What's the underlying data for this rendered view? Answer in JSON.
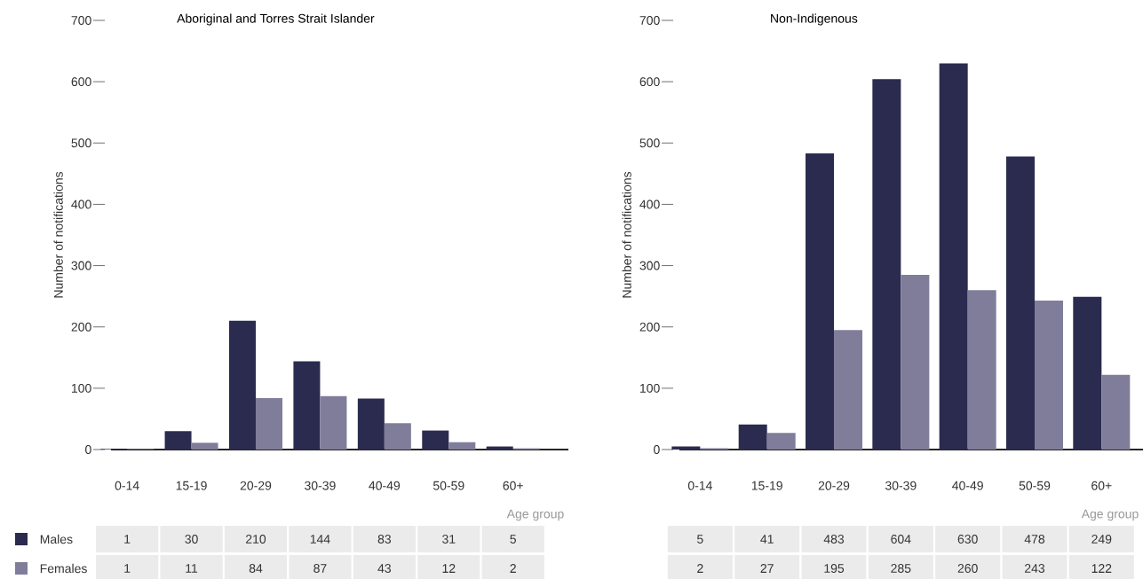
{
  "chart_data": [
    {
      "type": "bar",
      "title": "Aboriginal and Torres Strait Islander",
      "ylabel": "Number of notifications",
      "xlabel": "Age group",
      "categories": [
        "0-14",
        "15-19",
        "20-29",
        "30-39",
        "40-49",
        "50-59",
        "60+"
      ],
      "series": [
        {
          "name": "Males",
          "color": "#2b2a4f",
          "values": [
            1,
            30,
            210,
            144,
            83,
            31,
            5
          ]
        },
        {
          "name": "Females",
          "color": "#807d9b",
          "values": [
            1,
            11,
            84,
            87,
            43,
            12,
            2
          ]
        }
      ],
      "ylim": [
        0,
        700
      ],
      "yticks": [
        0,
        100,
        200,
        300,
        400,
        500,
        600,
        700
      ],
      "data_labels": true,
      "legend": "bottom left"
    },
    {
      "type": "bar",
      "title": "Non-Indigenous",
      "ylabel": "Number of notifications",
      "xlabel": "Age group",
      "categories": [
        "0-14",
        "15-19",
        "20-29",
        "30-39",
        "40-49",
        "50-59",
        "60+"
      ],
      "series": [
        {
          "color": "#2b2a4f",
          "values": [
            5,
            41,
            483,
            604,
            630,
            478,
            249
          ]
        },
        {
          "color": "#807d9b",
          "values": [
            2,
            27,
            195,
            285,
            260,
            243,
            122
          ]
        }
      ],
      "ylim": [
        0,
        700
      ],
      "yticks": [
        0,
        100,
        200,
        300,
        400,
        500,
        600,
        700
      ],
      "data_labels": true
    }
  ]
}
